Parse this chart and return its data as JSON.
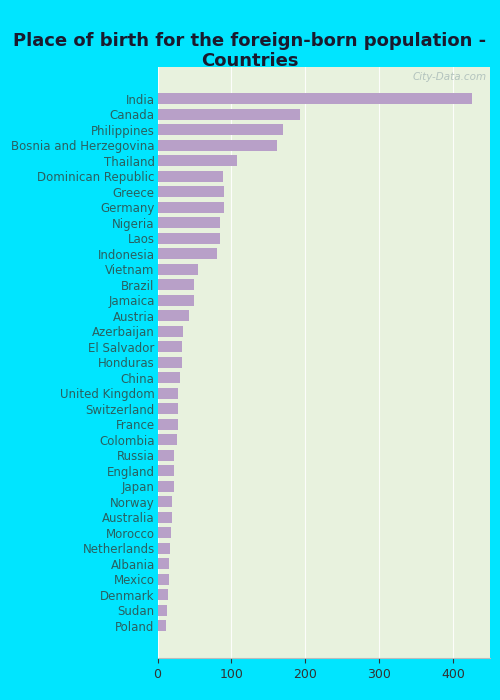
{
  "title": "Place of birth for the foreign-born population -\nCountries",
  "categories": [
    "India",
    "Canada",
    "Philippines",
    "Bosnia and Herzegovina",
    "Thailand",
    "Dominican Republic",
    "Greece",
    "Germany",
    "Nigeria",
    "Laos",
    "Indonesia",
    "Vietnam",
    "Brazil",
    "Jamaica",
    "Austria",
    "Azerbaijan",
    "El Salvador",
    "Honduras",
    "China",
    "United Kingdom",
    "Switzerland",
    "France",
    "Colombia",
    "Russia",
    "England",
    "Japan",
    "Norway",
    "Australia",
    "Morocco",
    "Netherlands",
    "Albania",
    "Mexico",
    "Denmark",
    "Sudan",
    "Poland"
  ],
  "values": [
    425,
    193,
    170,
    162,
    108,
    88,
    90,
    90,
    85,
    85,
    80,
    55,
    50,
    50,
    43,
    35,
    33,
    33,
    30,
    28,
    28,
    28,
    27,
    22,
    22,
    22,
    20,
    20,
    18,
    17,
    16,
    15,
    14,
    13,
    12
  ],
  "bar_color": "#b8a0c8",
  "background_plot": "#e8f2de",
  "background_fig": "#00e5ff",
  "xlim": [
    0,
    450
  ],
  "xticks": [
    0,
    100,
    200,
    300,
    400
  ],
  "title_fontsize": 13,
  "label_fontsize": 8.5,
  "tick_fontsize": 9,
  "watermark": "City-Data.com"
}
